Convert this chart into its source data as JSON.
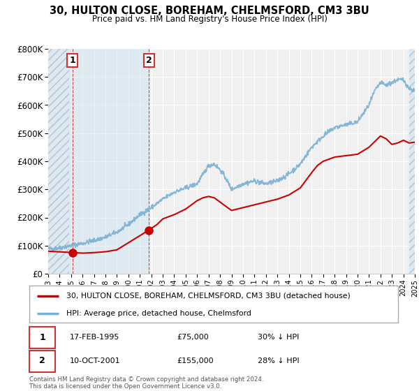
{
  "title": "30, HULTON CLOSE, BOREHAM, CHELMSFORD, CM3 3BU",
  "subtitle": "Price paid vs. HM Land Registry's House Price Index (HPI)",
  "legend_label_red": "30, HULTON CLOSE, BOREHAM, CHELMSFORD, CM3 3BU (detached house)",
  "legend_label_blue": "HPI: Average price, detached house, Chelmsford",
  "sale1_date": "17-FEB-1995",
  "sale1_price": "£75,000",
  "sale1_hpi": "30% ↓ HPI",
  "sale2_date": "10-OCT-2001",
  "sale2_price": "£155,000",
  "sale2_hpi": "28% ↓ HPI",
  "footer": "Contains HM Land Registry data © Crown copyright and database right 2024.\nThis data is licensed under the Open Government Licence v3.0.",
  "ylim": [
    0,
    800000
  ],
  "yticks": [
    0,
    100000,
    200000,
    300000,
    400000,
    500000,
    600000,
    700000,
    800000
  ],
  "sale1_x": 1995.12,
  "sale1_y": 75000,
  "sale2_x": 2001.78,
  "sale2_y": 155000,
  "red_line_color": "#cc0000",
  "blue_line_color": "#7ab0d4",
  "sale_marker_color": "#cc0000",
  "hatch_fill_color": "#dde8f0",
  "hatch_edge_color": "#b0c4d4",
  "blue_shade_color": "#d0e4f0",
  "plot_bg_color": "#f0f0f0",
  "grid_color": "#ffffff",
  "xmin": 1993,
  "xmax": 2025
}
